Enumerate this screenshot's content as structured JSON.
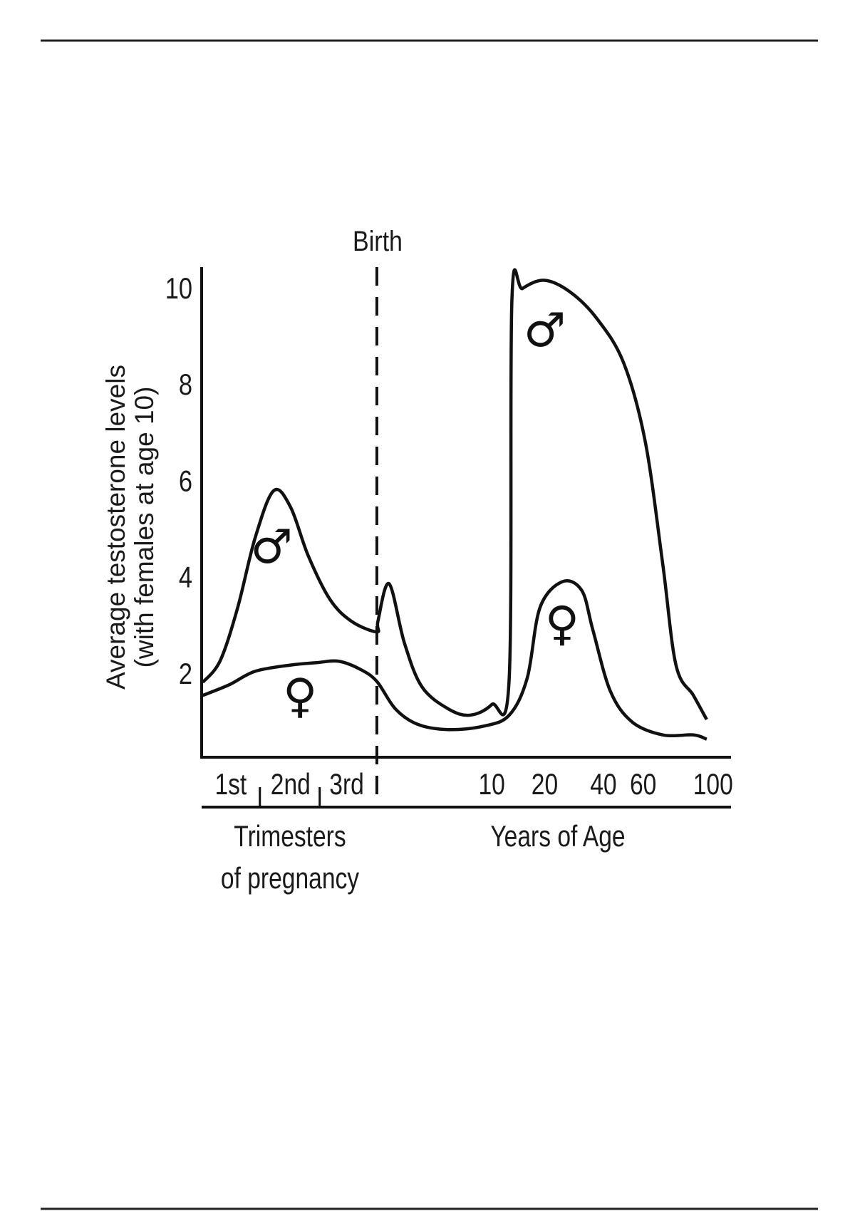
{
  "chart_data": {
    "type": "line",
    "title": "",
    "ylabel_line1": "Average testosterone levels",
    "ylabel_line2": "(with females at age 10)",
    "ylim": [
      0,
      10.5
    ],
    "y_ticks": [
      "2",
      "4",
      "6",
      "8",
      "10"
    ],
    "y_tick_values": [
      2,
      4,
      6,
      8,
      10
    ],
    "x_note": "x values are relative axis position 0-100; birth at 33.1",
    "xlim": [
      0,
      100
    ],
    "birth_label": "Birth",
    "birth_x": 33.1,
    "trimester_ticks": [
      {
        "label": "1st",
        "x": 5.5
      },
      {
        "label": "2nd",
        "x": 16.8
      },
      {
        "label": "3rd",
        "x": 27.4
      }
    ],
    "trimester_dividers": [
      11.0,
      22.3,
      33.1
    ],
    "age_ticks": [
      {
        "label": "10",
        "x": 54.8
      },
      {
        "label": "20",
        "x": 64.8
      },
      {
        "label": "40",
        "x": 75.9
      },
      {
        "label": "60",
        "x": 83.4
      },
      {
        "label": "100",
        "x": 96.6
      }
    ],
    "group_labels": {
      "prenatal_line1": "Trimesters",
      "prenatal_line2": "of pregnancy",
      "postnatal": "Years of Age"
    },
    "series": [
      {
        "name": "male",
        "symbol": "♂",
        "x": [
          0.2,
          3.5,
          6.8,
          10.1,
          13.6,
          16.8,
          20.1,
          24.2,
          28.3,
          33.1,
          33.3,
          35.4,
          38.3,
          41.6,
          46.6,
          50.7,
          54.8,
          58.1,
          58.6,
          60.6,
          64.8,
          69.7,
          74.7,
          79.7,
          83.8,
          87.1,
          89.6,
          92.9,
          95.4
        ],
        "y": [
          1.82,
          2.27,
          3.37,
          4.82,
          5.8,
          5.46,
          4.46,
          3.55,
          3.09,
          2.87,
          3.09,
          3.87,
          2.64,
          1.73,
          1.27,
          1.14,
          1.36,
          1.91,
          9.73,
          10.0,
          10.17,
          9.92,
          9.37,
          8.46,
          6.82,
          4.28,
          2.18,
          1.55,
          1.05
        ]
      },
      {
        "name": "female",
        "symbol": "♀",
        "x": [
          0.2,
          5.2,
          10.1,
          16.8,
          21.7,
          25.9,
          30.0,
          33.1,
          36.6,
          40.8,
          46.6,
          53.2,
          58.1,
          61.5,
          63.9,
          68.1,
          71.8,
          73.9,
          77.2,
          81.3,
          87.1,
          92.9,
          95.4
        ],
        "y": [
          1.55,
          1.77,
          2.05,
          2.18,
          2.23,
          2.26,
          2.09,
          1.84,
          1.27,
          0.95,
          0.84,
          0.91,
          1.14,
          1.91,
          3.37,
          3.91,
          3.73,
          2.91,
          1.64,
          1.0,
          0.73,
          0.73,
          0.64
        ]
      }
    ],
    "annotations": [
      {
        "text": "♂",
        "series": "male",
        "x": 13.2,
        "y": 4.6
      },
      {
        "text": "♂",
        "series": "male",
        "x": 64.8,
        "y": 9.1
      },
      {
        "text": "♀",
        "series": "female",
        "x": 18.6,
        "y": 1.5
      },
      {
        "text": "♀",
        "series": "female",
        "x": 68.1,
        "y": 3.0
      }
    ]
  }
}
